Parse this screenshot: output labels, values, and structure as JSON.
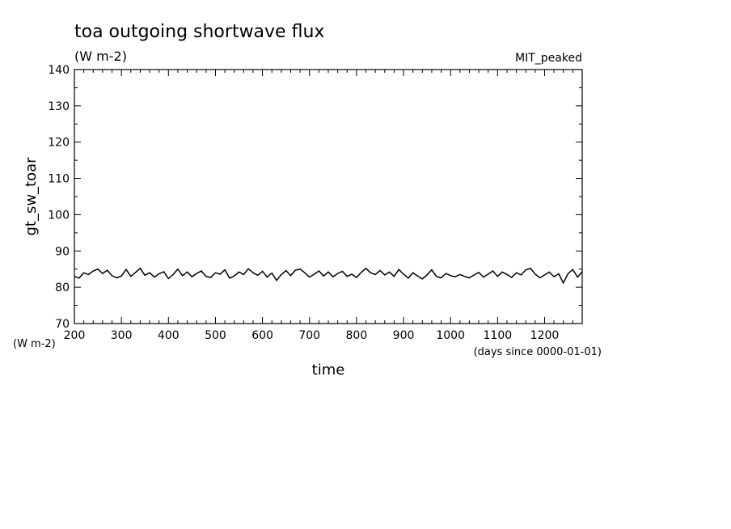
{
  "chart_data": {
    "type": "line",
    "title": "toa outgoing shortwave flux",
    "subtitle": "(W m-2)",
    "annotation": "MIT_peaked",
    "ylabel": "gt_sw_toar",
    "yunits": "(W m-2)",
    "xlabel": "time",
    "xunits": "(days since 0000-01-01)",
    "xlim": [
      200,
      1280
    ],
    "ylim": [
      70,
      140
    ],
    "xticks": [
      200,
      300,
      400,
      500,
      600,
      700,
      800,
      900,
      1000,
      1100,
      1200
    ],
    "yticks": [
      70,
      80,
      90,
      100,
      110,
      120,
      130,
      140
    ],
    "grid": false,
    "series": [
      {
        "x": [
          200,
          210,
          220,
          230,
          240,
          250,
          260,
          270,
          280,
          290,
          300,
          310,
          320,
          330,
          340,
          350,
          360,
          370,
          380,
          390,
          400,
          410,
          420,
          430,
          440,
          450,
          460,
          470,
          480,
          490,
          500,
          510,
          520,
          530,
          540,
          550,
          560,
          570,
          580,
          590,
          600,
          610,
          620,
          630,
          640,
          650,
          660,
          670,
          680,
          690,
          700,
          710,
          720,
          730,
          740,
          750,
          760,
          770,
          780,
          790,
          800,
          810,
          820,
          830,
          840,
          850,
          860,
          870,
          880,
          890,
          900,
          910,
          920,
          930,
          940,
          950,
          960,
          970,
          980,
          990,
          1000,
          1010,
          1020,
          1030,
          1040,
          1050,
          1060,
          1070,
          1080,
          1090,
          1100,
          1110,
          1120,
          1130,
          1140,
          1150,
          1160,
          1170,
          1180,
          1190,
          1200,
          1210,
          1220,
          1230,
          1240,
          1250,
          1260,
          1270,
          1280
        ],
        "values": [
          83.0,
          82.5,
          84.0,
          83.5,
          84.5,
          85.0,
          83.8,
          84.7,
          83.2,
          82.6,
          83.1,
          84.9,
          83.0,
          84.1,
          85.2,
          83.3,
          84.0,
          82.8,
          83.7,
          84.3,
          82.4,
          83.5,
          85.0,
          83.2,
          84.2,
          82.9,
          83.8,
          84.5,
          83.0,
          82.7,
          84.0,
          83.6,
          84.8,
          82.5,
          83.1,
          84.2,
          83.5,
          85.1,
          84.0,
          83.3,
          84.4,
          82.8,
          83.9,
          81.9,
          83.5,
          84.6,
          83.2,
          84.7,
          85.0,
          84.0,
          82.8,
          83.6,
          84.5,
          83.1,
          84.2,
          82.9,
          83.8,
          84.4,
          83.0,
          83.6,
          82.7,
          84.1,
          85.2,
          84.0,
          83.5,
          84.6,
          83.4,
          84.2,
          83.0,
          84.9,
          83.6,
          82.5,
          84.0,
          83.1,
          82.3,
          83.4,
          84.8,
          83.0,
          82.6,
          83.8,
          83.2,
          82.9,
          83.5,
          83.0,
          82.6,
          83.4,
          84.1,
          82.8,
          83.6,
          84.5,
          83.0,
          84.2,
          83.5,
          82.7,
          84.0,
          83.4,
          84.8,
          85.2,
          83.6,
          82.6,
          83.4,
          84.2,
          82.9,
          83.7,
          81.2,
          83.8,
          84.9,
          82.8,
          84.3
        ]
      }
    ]
  }
}
